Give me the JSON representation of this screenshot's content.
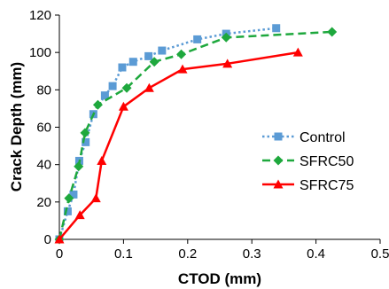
{
  "chart_data": {
    "type": "line",
    "xlabel": "CTOD (mm)",
    "ylabel": "Crack Depth (mm)",
    "xlim": [
      0,
      0.5
    ],
    "ylim": [
      0,
      120
    ],
    "xticks": [
      0,
      0.1,
      0.2,
      0.3,
      0.4,
      0.5
    ],
    "yticks": [
      0,
      20,
      40,
      60,
      80,
      100,
      120
    ],
    "xtick_labels": [
      "0",
      "0.1",
      "0.2",
      "0.3",
      "0.4",
      "0.5"
    ],
    "ytick_labels": [
      "0",
      "20",
      "40",
      "60",
      "80",
      "100",
      "120"
    ],
    "grid": false,
    "legend_position": "center-right",
    "series": [
      {
        "name": "Control",
        "color": "#5B9BD5",
        "line_style": "dotted",
        "marker": "square",
        "x": [
          0,
          0.013,
          0.022,
          0.031,
          0.041,
          0.053,
          0.071,
          0.083,
          0.098,
          0.115,
          0.139,
          0.16,
          0.215,
          0.26,
          0.338
        ],
        "y": [
          0,
          15,
          24,
          42,
          52,
          67,
          77,
          82,
          92,
          95,
          98,
          101,
          107,
          110,
          113
        ]
      },
      {
        "name": "SFRC50",
        "color": "#1EA83D",
        "line_style": "dashed",
        "marker": "diamond",
        "x": [
          0,
          0.015,
          0.03,
          0.04,
          0.06,
          0.105,
          0.148,
          0.19,
          0.26,
          0.425
        ],
        "y": [
          0,
          22,
          39,
          57,
          72,
          81,
          95,
          99,
          108,
          111
        ]
      },
      {
        "name": "SFRC75",
        "color": "#FF0000",
        "line_style": "solid",
        "marker": "triangle",
        "x": [
          0,
          0.032,
          0.057,
          0.066,
          0.1,
          0.14,
          0.192,
          0.262,
          0.372
        ],
        "y": [
          0,
          13,
          22,
          42,
          71,
          81,
          91,
          94,
          100
        ]
      }
    ]
  }
}
